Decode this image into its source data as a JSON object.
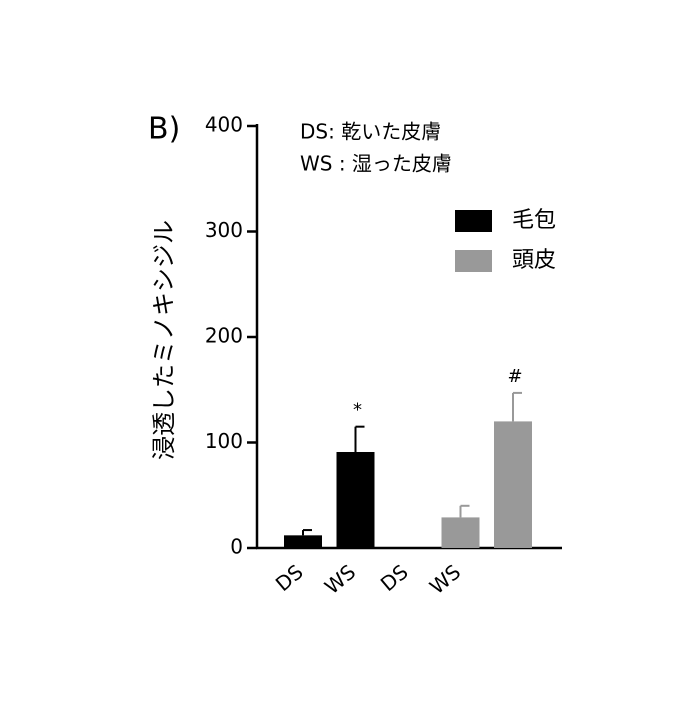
{
  "chart_data": {
    "type": "bar",
    "panel_label": "B)",
    "notes": [
      "DS: 乾いた皮膚",
      "WS : 湿った皮膚"
    ],
    "y_label": "浸透したミノキシジル",
    "categories": [
      "DS",
      "WS",
      "DS",
      "WS",
      null
    ],
    "series": [
      {
        "name": "毛包",
        "color": "#000000",
        "values": [
          12,
          91,
          null,
          null,
          null
        ],
        "errors": [
          5,
          24,
          null,
          null,
          null
        ],
        "significance": [
          null,
          "*",
          null,
          null,
          null
        ]
      },
      {
        "name": "頭皮",
        "color": "#999999",
        "values": [
          null,
          null,
          null,
          29,
          120
        ],
        "errors": [
          null,
          null,
          null,
          11,
          27
        ],
        "significance": [
          null,
          null,
          null,
          null,
          "#"
        ]
      }
    ],
    "ylim": [
      0,
      400
    ],
    "yticks": [
      0,
      100,
      200,
      300,
      400
    ],
    "grid": false
  }
}
